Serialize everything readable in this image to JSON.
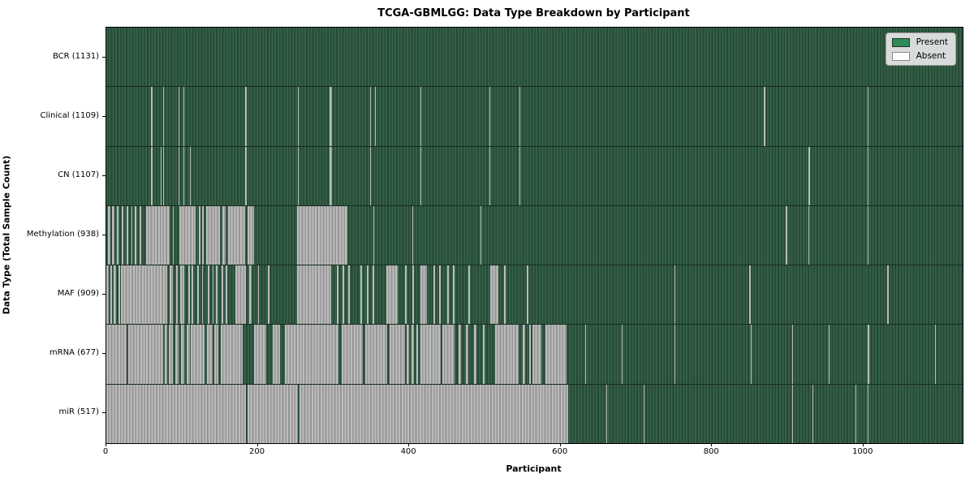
{
  "title": "TCGA-GBMLGG: Data Type Breakdown by Participant",
  "chart_data": {
    "type": "heatmap",
    "title": "TCGA-GBMLGG: Data Type Breakdown by Participant",
    "xlabel": "Participant",
    "ylabel": "Data Type (Total Sample Count)",
    "x_range": [
      0,
      1131
    ],
    "x_ticks": [
      0,
      200,
      400,
      600,
      800,
      1000
    ],
    "grid": false,
    "legend": {
      "position": "upper right",
      "entries": [
        {
          "label": "Present",
          "color": "#2e8b57"
        },
        {
          "label": "Absent",
          "color": "#ffffff"
        }
      ]
    },
    "rows": [
      {
        "name": "BCR",
        "label": "BCR (1131)",
        "present_count": 1131,
        "absent_segments": []
      },
      {
        "name": "Clinical",
        "label": "Clinical (1109)",
        "present_count": 1109,
        "absent_segments": [
          [
            59,
            61
          ],
          [
            75,
            76
          ],
          [
            95,
            96
          ],
          [
            102,
            103
          ],
          [
            183,
            186
          ],
          [
            253,
            254
          ],
          [
            295,
            298
          ],
          [
            348,
            349
          ],
          [
            355,
            356
          ],
          [
            415,
            416
          ],
          [
            506,
            507
          ],
          [
            546,
            547
          ],
          [
            868,
            870
          ],
          [
            1006,
            1007
          ]
        ]
      },
      {
        "name": "CN",
        "label": "CN (1107)",
        "present_count": 1107,
        "absent_segments": [
          [
            59,
            61
          ],
          [
            72,
            73
          ],
          [
            75,
            76
          ],
          [
            95,
            96
          ],
          [
            102,
            103
          ],
          [
            110,
            111
          ],
          [
            183,
            186
          ],
          [
            253,
            254
          ],
          [
            295,
            298
          ],
          [
            348,
            349
          ],
          [
            415,
            416
          ],
          [
            506,
            507
          ],
          [
            546,
            547
          ],
          [
            927,
            929
          ],
          [
            1006,
            1007
          ]
        ]
      },
      {
        "name": "Methylation",
        "label": "Methylation (938)",
        "present_count": 938,
        "absent_segments": [
          [
            2,
            5
          ],
          [
            8,
            11
          ],
          [
            14,
            16
          ],
          [
            20,
            22
          ],
          [
            27,
            29
          ],
          [
            33,
            34
          ],
          [
            38,
            40
          ],
          [
            44,
            46
          ],
          [
            53,
            84
          ],
          [
            88,
            89
          ],
          [
            97,
            118
          ],
          [
            122,
            124
          ],
          [
            127,
            129
          ],
          [
            132,
            150
          ],
          [
            153,
            158
          ],
          [
            161,
            183
          ],
          [
            186,
            195
          ],
          [
            252,
            318
          ],
          [
            353,
            354
          ],
          [
            404,
            405
          ],
          [
            423,
            424
          ],
          [
            494,
            495
          ],
          [
            897,
            899
          ],
          [
            927,
            928
          ],
          [
            1006,
            1007
          ]
        ]
      },
      {
        "name": "MAF",
        "label": "MAF (909)",
        "present_count": 909,
        "absent_segments": [
          [
            0,
            3
          ],
          [
            5,
            8
          ],
          [
            10,
            13
          ],
          [
            16,
            18
          ],
          [
            19,
            80
          ],
          [
            84,
            88
          ],
          [
            92,
            94
          ],
          [
            98,
            103
          ],
          [
            108,
            110
          ],
          [
            113,
            115
          ],
          [
            120,
            122
          ],
          [
            126,
            128
          ],
          [
            134,
            136
          ],
          [
            140,
            141
          ],
          [
            145,
            147
          ],
          [
            152,
            154
          ],
          [
            158,
            160
          ],
          [
            170,
            184
          ],
          [
            189,
            192
          ],
          [
            200,
            202
          ],
          [
            213,
            215
          ],
          [
            252,
            297
          ],
          [
            304,
            307
          ],
          [
            312,
            314
          ],
          [
            320,
            322
          ],
          [
            336,
            338
          ],
          [
            344,
            346
          ],
          [
            352,
            354
          ],
          [
            370,
            385
          ],
          [
            395,
            397
          ],
          [
            404,
            406
          ],
          [
            415,
            423
          ],
          [
            432,
            434
          ],
          [
            440,
            442
          ],
          [
            450,
            452
          ],
          [
            458,
            460
          ],
          [
            478,
            480
          ],
          [
            507,
            518
          ],
          [
            525,
            527
          ],
          [
            555,
            557
          ],
          [
            750,
            752
          ],
          [
            849,
            851
          ],
          [
            1031,
            1033
          ]
        ]
      },
      {
        "name": "mRNA",
        "label": "mRNA (677)",
        "present_count": 677,
        "absent_segments": [
          [
            0,
            27
          ],
          [
            29,
            75
          ],
          [
            77,
            80
          ],
          [
            83,
            88
          ],
          [
            91,
            95
          ],
          [
            99,
            103
          ],
          [
            106,
            110
          ],
          [
            112,
            130
          ],
          [
            133,
            140
          ],
          [
            143,
            148
          ],
          [
            151,
            180
          ],
          [
            195,
            211
          ],
          [
            220,
            229
          ],
          [
            236,
            307
          ],
          [
            311,
            339
          ],
          [
            342,
            371
          ],
          [
            374,
            395
          ],
          [
            397,
            400
          ],
          [
            403,
            406
          ],
          [
            409,
            412
          ],
          [
            415,
            442
          ],
          [
            444,
            460
          ],
          [
            465,
            468
          ],
          [
            475,
            478
          ],
          [
            486,
            489
          ],
          [
            497,
            500
          ],
          [
            513,
            545
          ],
          [
            550,
            553
          ],
          [
            558,
            561
          ],
          [
            563,
            575
          ],
          [
            580,
            608
          ],
          [
            633,
            634
          ],
          [
            681,
            682
          ],
          [
            750,
            752
          ],
          [
            851,
            852
          ],
          [
            906,
            907
          ],
          [
            954,
            955
          ],
          [
            1006,
            1008
          ],
          [
            1095,
            1096
          ]
        ]
      },
      {
        "name": "miR",
        "label": "miR (517)",
        "present_count": 517,
        "absent_segments": [
          [
            0,
            184
          ],
          [
            186,
            253
          ],
          [
            255,
            610
          ],
          [
            660,
            661
          ],
          [
            710,
            711
          ],
          [
            906,
            907
          ],
          [
            933,
            934
          ],
          [
            990,
            991
          ],
          [
            1006,
            1007
          ]
        ]
      }
    ]
  },
  "colors": {
    "present_light": "#33614a",
    "present_dark": "#284832",
    "absent_light": "#bcbcbc",
    "absent_dark": "#959595",
    "legend_present": "#2e8b57",
    "legend_absent": "#ffffff"
  }
}
